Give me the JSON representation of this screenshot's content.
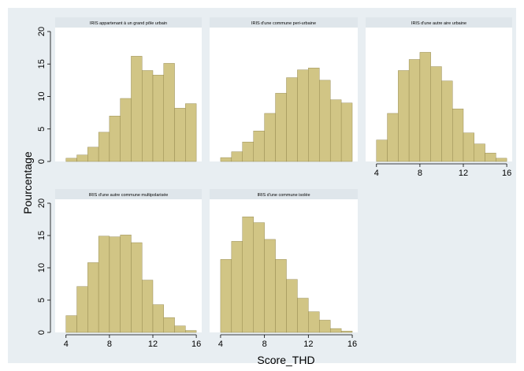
{
  "chart_data": {
    "type": "bar",
    "xlabel": "Score_THD",
    "ylabel": "Pourcentage",
    "ylim": [
      0,
      20
    ],
    "yticks": [
      0,
      5,
      10,
      15,
      20
    ],
    "xticks": [
      4,
      8,
      12,
      16
    ],
    "xlim": [
      3,
      16.5
    ],
    "bin_width": 1,
    "bin_starts": [
      4,
      5,
      6,
      7,
      8,
      9,
      10,
      11,
      12,
      13,
      14,
      15
    ],
    "grid": false,
    "colors": {
      "bar_fill": "#d1c585",
      "bar_stroke": "#8a7e45",
      "plot_bg": "#ffffff",
      "outer_bg": "#e8eef2",
      "strip_bg": "#dfe6eb"
    },
    "panels": [
      {
        "title": "IRIS appartenant à un grand pôle urbain",
        "values": [
          0.5,
          1.0,
          2.2,
          4.5,
          7.0,
          9.7,
          16.2,
          14.0,
          13.3,
          15.1,
          8.2,
          8.9
        ]
      },
      {
        "title": "IRIS d'une commune peri-urbaine",
        "values": [
          0.6,
          1.5,
          3.0,
          4.7,
          7.4,
          10.5,
          12.9,
          14.1,
          14.4,
          12.5,
          9.5,
          9.0
        ]
      },
      {
        "title": "IRIS d'une autre aire urbaine",
        "values": [
          3.3,
          7.4,
          14.0,
          15.7,
          16.8,
          14.6,
          12.4,
          8.1,
          4.4,
          2.7,
          1.3,
          0.5
        ]
      },
      {
        "title": "IRIS d'une autre commune multipolarisée",
        "values": [
          2.6,
          7.1,
          10.8,
          14.9,
          14.8,
          15.1,
          13.9,
          8.1,
          4.3,
          2.3,
          1.0,
          0.3
        ]
      },
      {
        "title": "IRIS d'une commune isolée",
        "values": [
          11.3,
          14.1,
          17.9,
          17.0,
          14.4,
          11.3,
          8.2,
          5.3,
          3.2,
          1.9,
          0.6,
          0.2
        ]
      }
    ]
  }
}
